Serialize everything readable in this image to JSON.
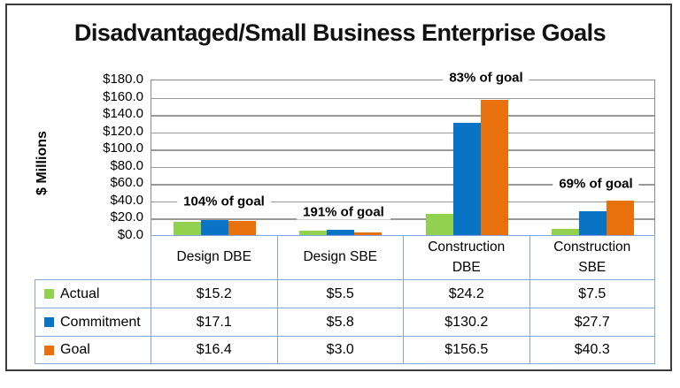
{
  "chart_data": {
    "type": "bar",
    "title": "Disadvantaged/Small Business Enterprise Goals",
    "ylabel": "$ Millions",
    "xlabel": "",
    "ylim": [
      0,
      180
    ],
    "y_tick_step": 20,
    "y_ticks": [
      "$180.0",
      "$160.0",
      "$140.0",
      "$120.0",
      "$100.0",
      "$80.0",
      "$60.0",
      "$40.0",
      "$20.0",
      "$0.0"
    ],
    "grid": true,
    "legend_position": "table-left",
    "categories": [
      "Design DBE",
      "Design SBE",
      "Construction DBE",
      "Construction SBE"
    ],
    "series": [
      {
        "name": "Actual",
        "color": "#92D050",
        "values": [
          15.2,
          5.5,
          24.2,
          7.5
        ],
        "labels": [
          "$15.2",
          "$5.5",
          "$24.2",
          "$7.5"
        ]
      },
      {
        "name": "Commitment",
        "color": "#0974C5",
        "values": [
          17.1,
          5.8,
          130.2,
          27.7
        ],
        "labels": [
          "$17.1",
          "$5.8",
          "$130.2",
          "$27.7"
        ]
      },
      {
        "name": "Goal",
        "color": "#E8710D",
        "values": [
          16.4,
          3.0,
          156.5,
          40.3
        ],
        "labels": [
          "$16.4",
          "$3.0",
          "$156.5",
          "$40.3"
        ]
      }
    ],
    "annotations": [
      {
        "text": "104% of goal",
        "category": "Design DBE"
      },
      {
        "text": "191% of goal",
        "category": "Design SBE"
      },
      {
        "text": "83% of goal",
        "category": "Construction DBE"
      },
      {
        "text": "69% of goal",
        "category": "Construction SBE"
      }
    ]
  }
}
